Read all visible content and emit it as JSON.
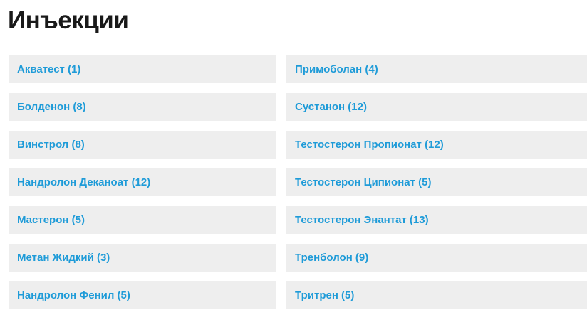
{
  "page": {
    "title": "Инъекции"
  },
  "colors": {
    "link": "#1e9bd8",
    "item_background": "#eeeeee",
    "title": "#191919",
    "page_background": "#ffffff"
  },
  "categories": {
    "left": [
      "Акватест (1)",
      "Болденон (8)",
      "Винстрол (8)",
      "Нандролон Деканоат (12)",
      "Мастерон (5)",
      "Метан Жидкий (3)",
      "Нандролон Фенил (5)"
    ],
    "right": [
      "Примоболан (4)",
      "Сустанон (12)",
      "Тестостерон Пропионат (12)",
      "Тестостерон Ципионат (5)",
      "Тестостерон Энантат (13)",
      "Тренболон (9)",
      "Тритрен (5)"
    ]
  }
}
